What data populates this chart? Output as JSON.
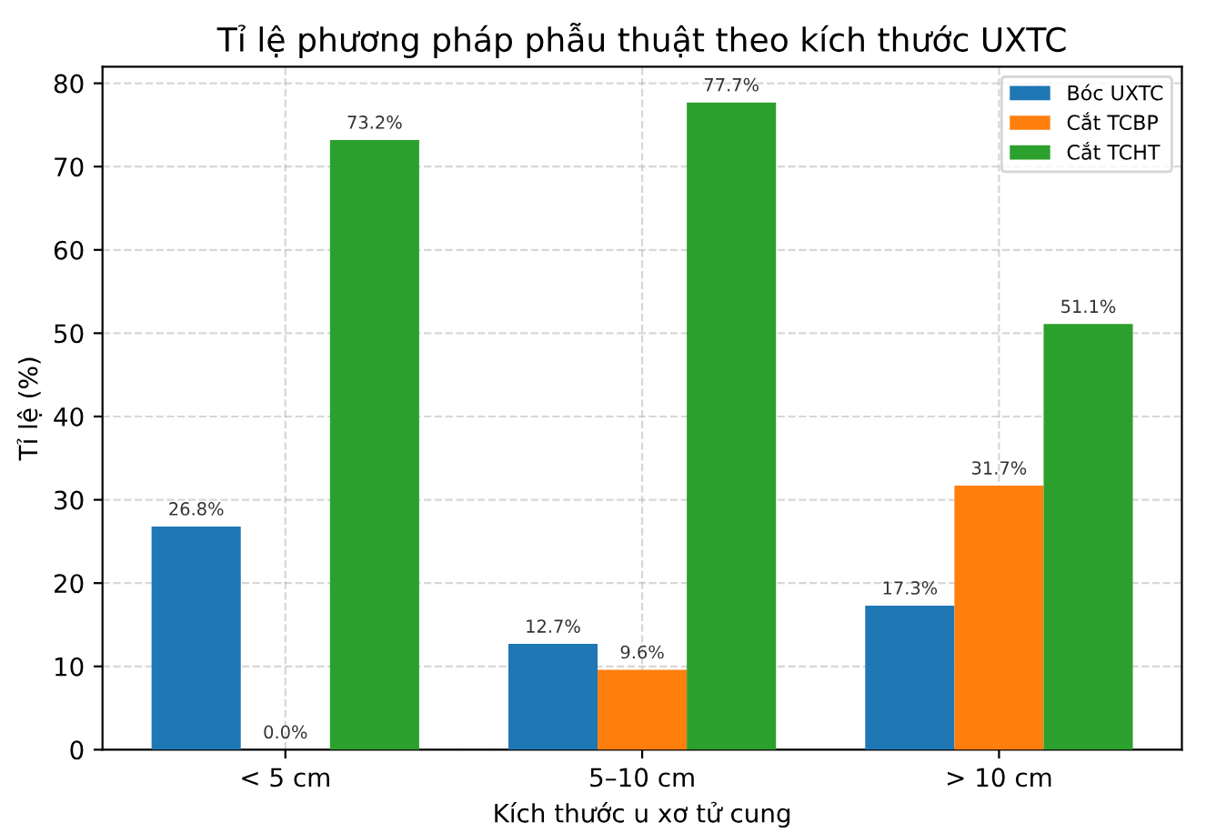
{
  "chart_data": {
    "type": "bar",
    "title": "Tỉ lệ phương pháp phẫu thuật theo kích thước UXTC",
    "xlabel": "Kích thước u xơ tử cung",
    "ylabel": "Tỉ lệ (%)",
    "categories": [
      "< 5 cm",
      "5–10 cm",
      "> 10 cm"
    ],
    "series": [
      {
        "name": "Bóc UXTC",
        "color": "#1f77b4",
        "values": [
          26.8,
          12.7,
          17.3
        ],
        "value_labels": [
          "26.8%",
          "12.7%",
          "17.3%"
        ]
      },
      {
        "name": "Cắt TCBP",
        "color": "#ff7f0e",
        "values": [
          0.0,
          9.6,
          31.7
        ],
        "value_labels": [
          "0.0%",
          "9.6%",
          "31.7%"
        ]
      },
      {
        "name": "Cắt TCHT",
        "color": "#2ca02c",
        "values": [
          73.2,
          77.7,
          51.1
        ],
        "value_labels": [
          "73.2%",
          "77.7%",
          "51.1%"
        ]
      }
    ],
    "ylim": [
      0,
      82
    ],
    "yticks": [
      0,
      10,
      20,
      30,
      40,
      50,
      60,
      70,
      80
    ],
    "grid": true,
    "legend": "top right"
  }
}
